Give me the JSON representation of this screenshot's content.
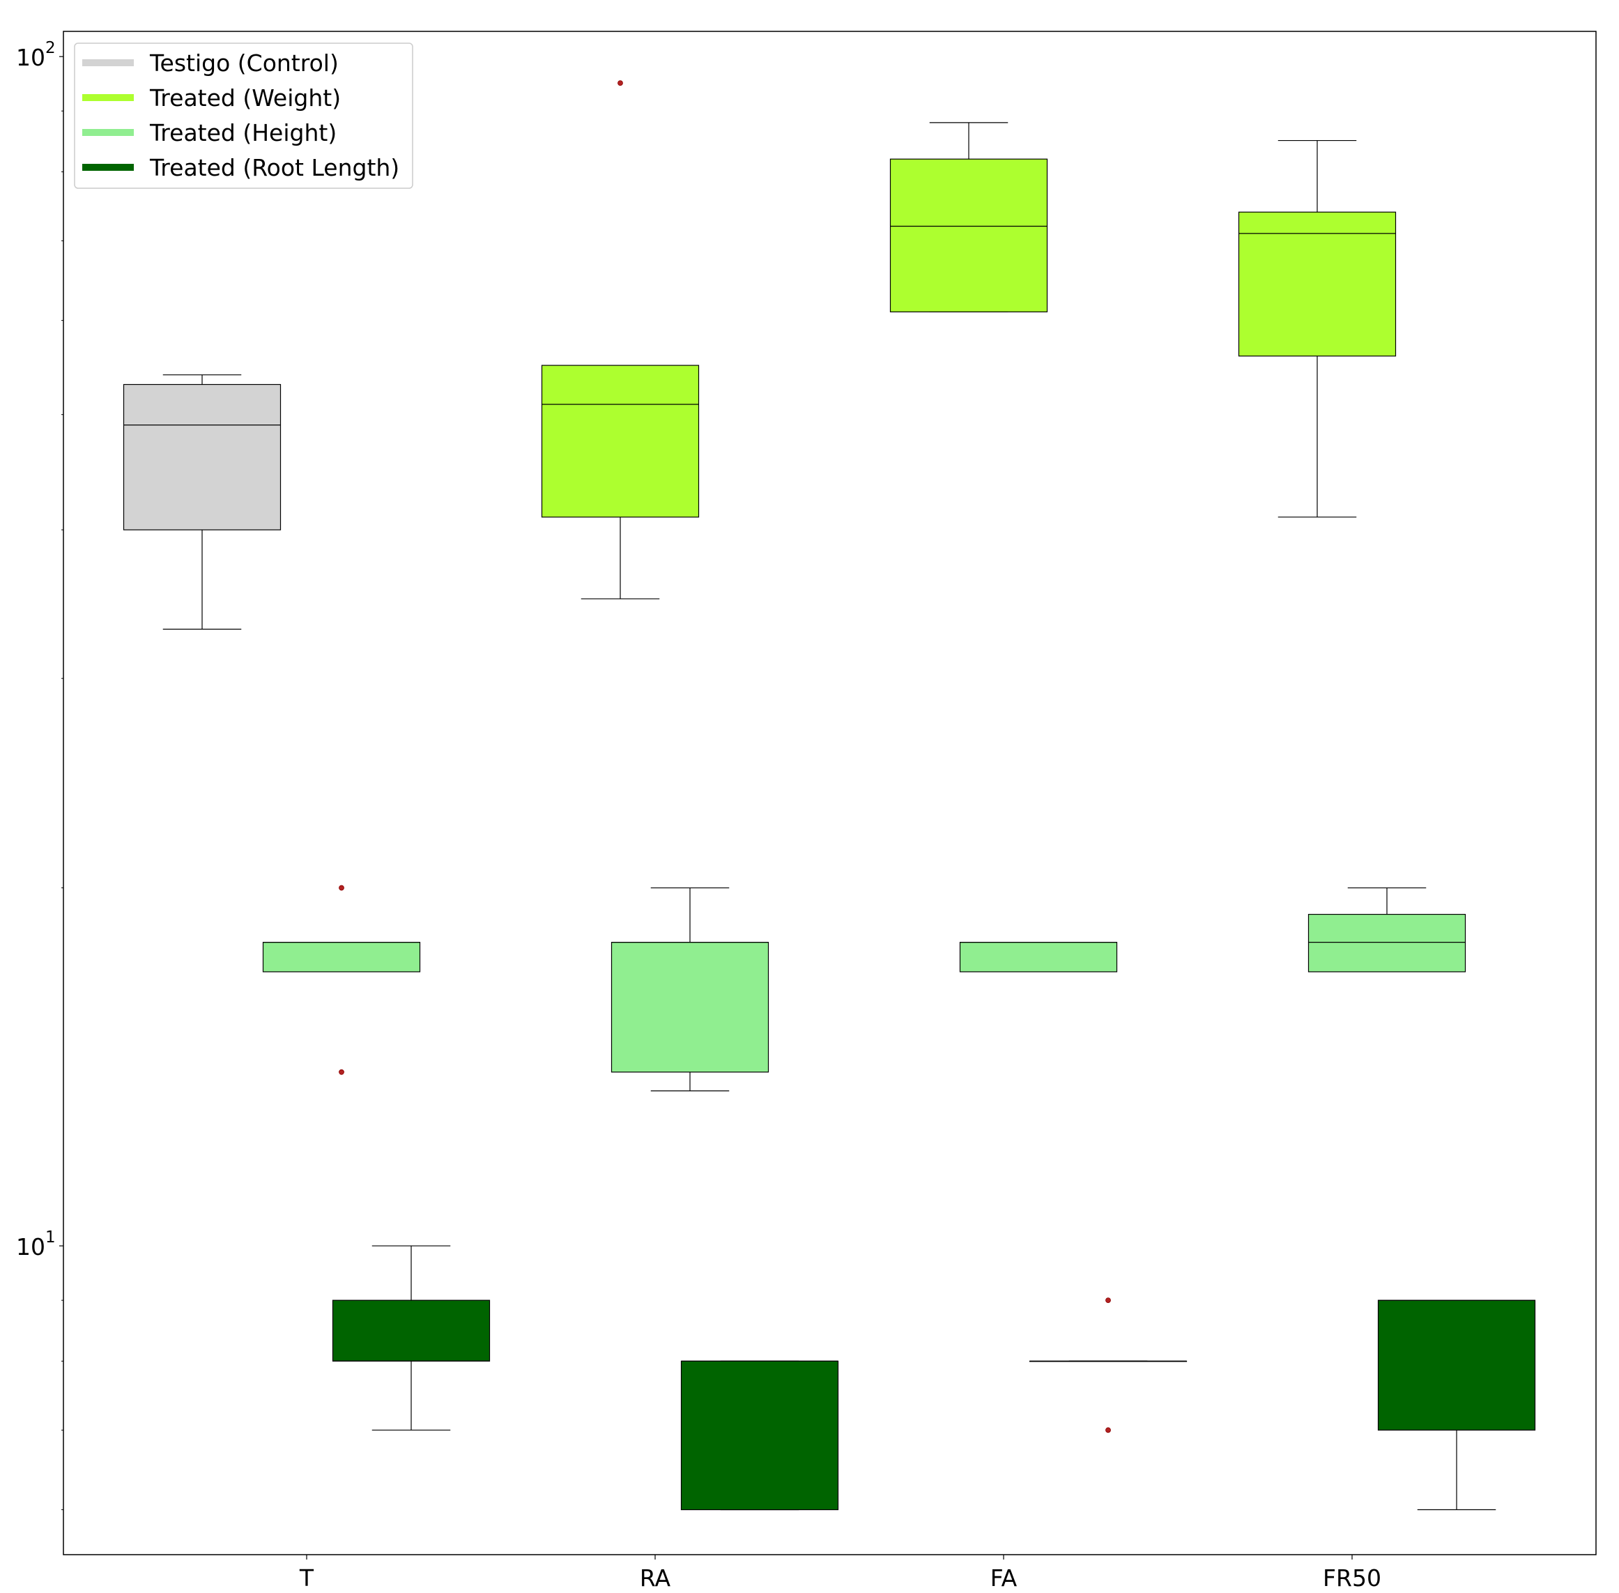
{
  "chart_data": {
    "type": "box",
    "title": "",
    "xlabel": "",
    "ylabel": "",
    "yscale": "log",
    "ylim": [
      5.5,
      105
    ],
    "y_major_ticks": [
      10,
      100
    ],
    "y_major_tick_labels": [
      "10",
      "100"
    ],
    "y_tick_label_base": "10",
    "y_tick_label_exponents": [
      "1",
      "2"
    ],
    "y_minor_ticks": [
      6,
      7,
      8,
      9,
      20,
      30,
      40,
      50,
      60,
      70,
      80,
      90
    ],
    "categories": [
      "T",
      "RA",
      "FA",
      "FR50"
    ],
    "grid": false,
    "legend_position": "top-left",
    "outlier_color": "#b22222",
    "series": [
      {
        "name": "Testigo (Control)",
        "color": "#d3d3d3",
        "boxes": [
          {
            "category": "T",
            "whislo": 33,
            "q1": 40,
            "med": 49,
            "q3": 53,
            "whishi": 54,
            "fliers": []
          }
        ]
      },
      {
        "name": "Treated (Weight)",
        "color": "#adff2f",
        "boxes": [
          {
            "category": "RA",
            "whislo": 35,
            "q1": 41,
            "med": 51,
            "q3": 55,
            "whishi": 55,
            "fliers": [
              95
            ]
          },
          {
            "category": "FA",
            "whislo": 61,
            "q1": 61,
            "med": 72,
            "q3": 82,
            "whishi": 88,
            "fliers": []
          },
          {
            "category": "FR50",
            "whislo": 41,
            "q1": 56,
            "med": 71,
            "q3": 74,
            "whishi": 85,
            "fliers": []
          }
        ]
      },
      {
        "name": "Treated (Height)",
        "color": "#90ee90",
        "boxes": [
          {
            "category": "T",
            "whislo": 17,
            "q1": 17,
            "med": 18,
            "q3": 18,
            "whishi": 18,
            "fliers": [
              20,
              14
            ]
          },
          {
            "category": "RA",
            "whislo": 13.5,
            "q1": 14,
            "med": 18,
            "q3": 18,
            "whishi": 20,
            "fliers": []
          },
          {
            "category": "FA",
            "whislo": 17,
            "q1": 17,
            "med": 18,
            "q3": 18,
            "whishi": 18,
            "fliers": []
          },
          {
            "category": "FR50",
            "whislo": 17,
            "q1": 17,
            "med": 18,
            "q3": 19,
            "whishi": 20,
            "fliers": []
          }
        ]
      },
      {
        "name": "Treated (Root Length)",
        "color": "#006400",
        "boxes": [
          {
            "category": "T",
            "whislo": 7,
            "q1": 8,
            "med": 8,
            "q3": 9,
            "whishi": 10,
            "fliers": []
          },
          {
            "category": "RA",
            "whislo": 6,
            "q1": 6,
            "med": 8,
            "q3": 8,
            "whishi": 8,
            "fliers": []
          },
          {
            "category": "FA",
            "whislo": 8,
            "q1": 8,
            "med": 8,
            "q3": 8,
            "whishi": 8,
            "fliers": [
              9,
              7
            ]
          },
          {
            "category": "FR50",
            "whislo": 6,
            "q1": 7,
            "med": 9,
            "q3": 9,
            "whishi": 9,
            "fliers": []
          }
        ]
      }
    ]
  }
}
